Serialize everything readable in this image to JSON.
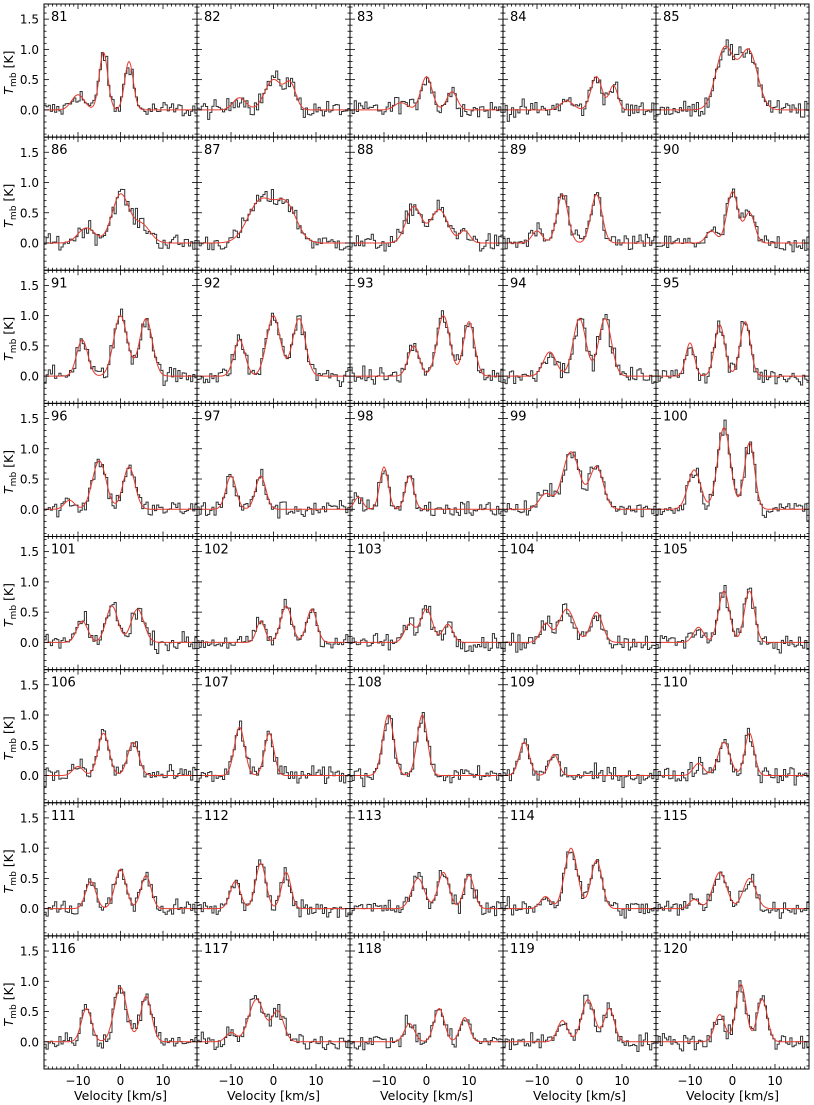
{
  "figure": {
    "ylabel_main": "T",
    "ylabel_sub": "mb",
    "ylabel_unit": " [K]",
    "xlabel": "Velocity [km/s]"
  },
  "chart_data": {
    "type": "line",
    "title": "",
    "xlabel": "Velocity [km/s]",
    "ylabel": "T_mb [K]",
    "xlim": [
      -18,
      18
    ],
    "ylim": [
      -0.45,
      1.75
    ],
    "x_ticks": [
      -10,
      0,
      10
    ],
    "x_tick_labels": [
      "−10",
      "0",
      "10"
    ],
    "y_ticks": [
      0.0,
      0.5,
      1.0,
      1.5
    ],
    "y_tick_labels": [
      "0.0",
      "0.5",
      "1.0",
      "1.5"
    ],
    "grid": false,
    "series_styles": {
      "observed": "#333333",
      "fit": "#e8392d"
    },
    "panels": [
      {
        "label": "81",
        "components": [
          [
            -4,
            0.95,
            1.0
          ],
          [
            2,
            0.8,
            1.0
          ],
          [
            -10,
            0.25,
            1.5
          ]
        ]
      },
      {
        "label": "82",
        "components": [
          [
            0,
            0.5,
            2.0
          ],
          [
            4,
            0.4,
            1.3
          ],
          [
            -8,
            0.2,
            1.5
          ]
        ]
      },
      {
        "label": "83",
        "components": [
          [
            0,
            0.55,
            1.3
          ],
          [
            6,
            0.3,
            1.2
          ],
          [
            -6,
            0.12,
            1.5
          ]
        ]
      },
      {
        "label": "84",
        "components": [
          [
            4,
            0.55,
            1.3
          ],
          [
            8,
            0.4,
            1.0
          ],
          [
            -3,
            0.15,
            1.5
          ]
        ]
      },
      {
        "label": "85",
        "components": [
          [
            -2,
            0.85,
            2.0
          ],
          [
            4,
            0.8,
            2.0
          ],
          [
            1,
            0.3,
            3.0
          ]
        ]
      },
      {
        "label": "86",
        "components": [
          [
            0,
            0.8,
            2.0
          ],
          [
            -8,
            0.25,
            2.0
          ],
          [
            5,
            0.3,
            2.0
          ]
        ]
      },
      {
        "label": "87",
        "components": [
          [
            -3,
            0.7,
            3.0
          ],
          [
            3,
            0.6,
            2.5
          ]
        ]
      },
      {
        "label": "88",
        "components": [
          [
            -3,
            0.6,
            1.8
          ],
          [
            3,
            0.55,
            2.0
          ],
          [
            9,
            0.2,
            1.2
          ]
        ]
      },
      {
        "label": "89",
        "components": [
          [
            -4,
            0.8,
            1.3
          ],
          [
            4,
            0.8,
            1.3
          ],
          [
            -10,
            0.2,
            1.2
          ]
        ]
      },
      {
        "label": "90",
        "components": [
          [
            0,
            0.85,
            1.3
          ],
          [
            4,
            0.5,
            1.2
          ],
          [
            -5,
            0.2,
            1.2
          ]
        ]
      },
      {
        "label": "91",
        "components": [
          [
            -9,
            0.6,
            1.3
          ],
          [
            0,
            1.0,
            1.6
          ],
          [
            6,
            0.95,
            1.5
          ]
        ]
      },
      {
        "label": "92",
        "components": [
          [
            -8,
            0.6,
            1.3
          ],
          [
            0,
            1.0,
            1.6
          ],
          [
            6,
            0.95,
            1.5
          ]
        ]
      },
      {
        "label": "93",
        "components": [
          [
            -3,
            0.5,
            1.3
          ],
          [
            4,
            1.0,
            1.5
          ],
          [
            10,
            0.9,
            1.3
          ]
        ]
      },
      {
        "label": "94",
        "components": [
          [
            -7,
            0.4,
            1.5
          ],
          [
            0,
            0.95,
            1.5
          ],
          [
            6,
            0.95,
            1.5
          ]
        ]
      },
      {
        "label": "95",
        "components": [
          [
            -10,
            0.55,
            1.0
          ],
          [
            -3,
            0.85,
            1.2
          ],
          [
            3,
            0.9,
            1.2
          ]
        ]
      },
      {
        "label": "96",
        "components": [
          [
            -5,
            0.8,
            1.6
          ],
          [
            2,
            0.7,
            1.4
          ],
          [
            -12,
            0.15,
            1.2
          ]
        ]
      },
      {
        "label": "97",
        "components": [
          [
            -10,
            0.55,
            1.2
          ],
          [
            -3,
            0.55,
            1.2
          ]
        ]
      },
      {
        "label": "98",
        "components": [
          [
            -10,
            0.7,
            1.0
          ],
          [
            -4,
            0.55,
            1.0
          ],
          [
            -16,
            0.2,
            1.0
          ]
        ]
      },
      {
        "label": "99",
        "components": [
          [
            -2,
            0.95,
            2.0
          ],
          [
            4,
            0.7,
            1.6
          ],
          [
            -8,
            0.25,
            1.5
          ]
        ]
      },
      {
        "label": "100",
        "components": [
          [
            -2,
            1.35,
            1.5
          ],
          [
            4,
            1.1,
            1.2
          ],
          [
            -9,
            0.65,
            1.5
          ]
        ]
      },
      {
        "label": "101",
        "components": [
          [
            -2,
            0.6,
            1.4
          ],
          [
            4,
            0.55,
            1.5
          ],
          [
            -9,
            0.35,
            1.3
          ]
        ]
      },
      {
        "label": "102",
        "components": [
          [
            -3,
            0.35,
            1.0
          ],
          [
            3,
            0.6,
            1.3
          ],
          [
            9,
            0.55,
            1.2
          ]
        ]
      },
      {
        "label": "103",
        "components": [
          [
            -4,
            0.3,
            1.2
          ],
          [
            0,
            0.55,
            1.4
          ],
          [
            5,
            0.3,
            1.2
          ]
        ]
      },
      {
        "label": "104",
        "components": [
          [
            -3,
            0.55,
            1.8
          ],
          [
            4,
            0.5,
            1.4
          ],
          [
            -8,
            0.3,
            1.2
          ]
        ]
      },
      {
        "label": "105",
        "components": [
          [
            -2,
            0.85,
            1.3
          ],
          [
            4,
            0.85,
            1.2
          ],
          [
            -8,
            0.25,
            1.2
          ]
        ]
      },
      {
        "label": "106",
        "components": [
          [
            -4,
            0.7,
            1.3
          ],
          [
            3,
            0.55,
            1.3
          ],
          [
            -10,
            0.15,
            1.2
          ]
        ]
      },
      {
        "label": "107",
        "components": [
          [
            -8,
            0.8,
            1.2
          ],
          [
            -1,
            0.7,
            1.1
          ]
        ]
      },
      {
        "label": "108",
        "components": [
          [
            -9,
            1.0,
            1.3
          ],
          [
            -1,
            1.0,
            1.2
          ]
        ]
      },
      {
        "label": "109",
        "components": [
          [
            -13,
            0.55,
            1.2
          ],
          [
            -6,
            0.35,
            1.1
          ]
        ]
      },
      {
        "label": "110",
        "components": [
          [
            -2,
            0.55,
            1.4
          ],
          [
            4,
            0.7,
            1.1
          ],
          [
            -8,
            0.2,
            1.2
          ]
        ]
      },
      {
        "label": "111",
        "components": [
          [
            -7,
            0.45,
            1.2
          ],
          [
            0,
            0.65,
            1.3
          ],
          [
            6,
            0.55,
            1.2
          ]
        ]
      },
      {
        "label": "112",
        "components": [
          [
            -9,
            0.45,
            1.2
          ],
          [
            -3,
            0.75,
            1.2
          ],
          [
            3,
            0.6,
            1.1
          ]
        ]
      },
      {
        "label": "113",
        "components": [
          [
            -2,
            0.5,
            1.5
          ],
          [
            4,
            0.6,
            1.3
          ],
          [
            10,
            0.55,
            1.2
          ]
        ]
      },
      {
        "label": "114",
        "components": [
          [
            -2,
            1.0,
            1.5
          ],
          [
            4,
            0.8,
            1.3
          ],
          [
            -8,
            0.2,
            1.2
          ]
        ]
      },
      {
        "label": "115",
        "components": [
          [
            -3,
            0.6,
            1.6
          ],
          [
            4,
            0.5,
            1.5
          ],
          [
            -9,
            0.15,
            1.2
          ]
        ]
      },
      {
        "label": "116",
        "components": [
          [
            -8,
            0.55,
            1.2
          ],
          [
            0,
            0.9,
            1.5
          ],
          [
            6,
            0.75,
            1.3
          ]
        ]
      },
      {
        "label": "117",
        "components": [
          [
            -4,
            0.7,
            1.8
          ],
          [
            1,
            0.5,
            1.4
          ],
          [
            -10,
            0.15,
            1.2
          ]
        ]
      },
      {
        "label": "118",
        "components": [
          [
            -4,
            0.3,
            1.2
          ],
          [
            3,
            0.55,
            1.2
          ],
          [
            9,
            0.4,
            1.1
          ]
        ]
      },
      {
        "label": "119",
        "components": [
          [
            -4,
            0.35,
            1.2
          ],
          [
            2,
            0.7,
            1.5
          ],
          [
            7,
            0.55,
            1.2
          ]
        ]
      },
      {
        "label": "120",
        "components": [
          [
            -3,
            0.45,
            1.2
          ],
          [
            2,
            0.95,
            1.2
          ],
          [
            7,
            0.7,
            1.2
          ]
        ]
      }
    ]
  }
}
